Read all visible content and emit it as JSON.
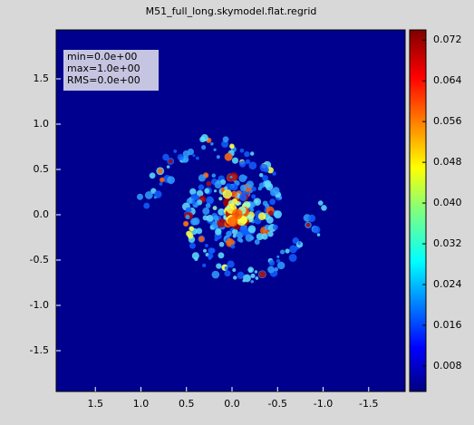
{
  "chart_data": {
    "type": "image",
    "title": "M51_full_long.skymodel.flat.regrid",
    "xlim": [
      1.93,
      -1.9
    ],
    "ylim": [
      -1.95,
      2.04
    ],
    "xticks": [
      1.5,
      {
        "value": 1,
        "label": "1.0"
      },
      0.5,
      {
        "value": 0,
        "label": "0.0"
      },
      -0.5,
      {
        "value": -1,
        "label": "-1.0"
      },
      -1.5
    ],
    "yticks": [
      1.5,
      {
        "value": 1,
        "label": "1.0"
      },
      0.5,
      {
        "value": 0,
        "label": "0.0"
      },
      -0.5,
      {
        "value": -1,
        "label": "-1.0"
      },
      -1.5
    ],
    "colorbar": {
      "lim": [
        0.003,
        0.074
      ],
      "ticks": [
        0.072,
        0.064,
        0.056,
        0.048,
        {
          "value": 0.04,
          "label": "0.040"
        },
        0.032,
        0.024,
        0.016,
        0.008
      ],
      "colormap": "jet"
    },
    "annotations": [
      "min=0.0e+00",
      "max=1.0e+00",
      "RMS=0.0e+00"
    ]
  }
}
